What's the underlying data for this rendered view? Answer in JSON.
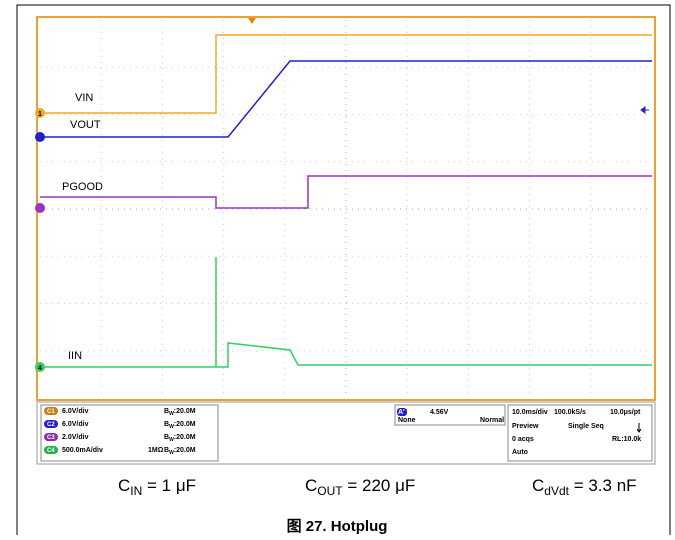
{
  "scope": {
    "trace_labels": [
      "VIN",
      "VOUT",
      "PGOOD",
      "IIN"
    ],
    "channel_markers": [
      "1",
      "4"
    ],
    "channels": [
      {
        "id": "C1",
        "scale": "6.0V/div",
        "bw": [
          "B",
          "W",
          ":20.0M"
        ]
      },
      {
        "id": "C2",
        "scale": "6.0V/div",
        "bw": [
          "B",
          "W",
          ":20.0M"
        ]
      },
      {
        "id": "C3",
        "scale": "2.0V/div",
        "bw": [
          "B",
          "W",
          ":20.0M"
        ]
      },
      {
        "id": "C4",
        "scale": "500.0mA/div",
        "impedance": "1MΩ",
        "bw": [
          "B",
          "W",
          ":20.0M"
        ]
      }
    ],
    "trigger": {
      "source": "A'",
      "level": "4.56V",
      "coupling": "None",
      "mode": "Normal"
    },
    "acquisition": {
      "timebase": "10.0ms/div",
      "rate": "100.0kS/s",
      "resolution": "10.0μs/pt",
      "preview": "Preview",
      "sequence": "Single Seq",
      "acqs": "0 acqs",
      "record": "RL:10.0k",
      "auto": "Auto"
    }
  },
  "captions": [
    {
      "base": "C",
      "sub": "IN",
      "rest": " = 1 μF"
    },
    {
      "base": "C",
      "sub": "OUT",
      "rest": " = 220 μF"
    },
    {
      "base": "C",
      "sub": "dVdt",
      "rest": " = 3.3 nF"
    }
  ],
  "figure_caption": "图 27. Hotplug"
}
